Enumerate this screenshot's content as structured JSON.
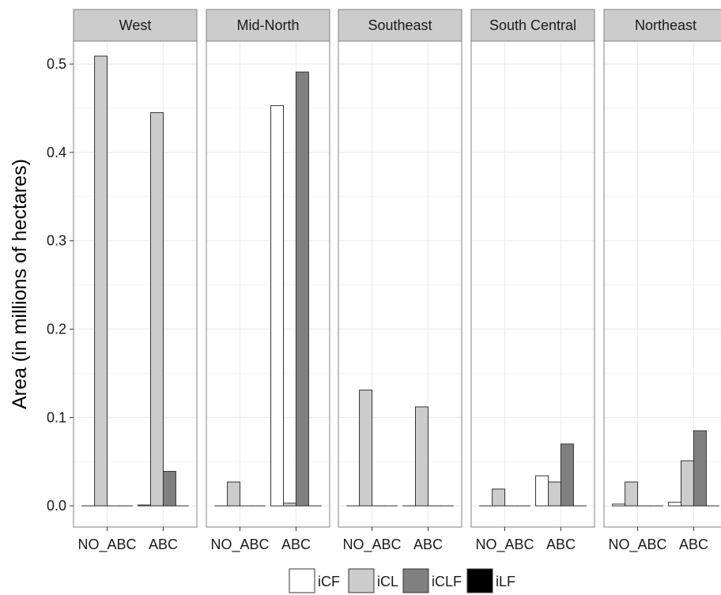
{
  "chart_data": {
    "type": "bar",
    "ylabel": "Area (in millions of hectares)",
    "xlabel": "",
    "ylim": [
      -0.024,
      0.526
    ],
    "yticks": [
      "0.0",
      "0.1",
      "0.2",
      "0.3",
      "0.4",
      "0.5"
    ],
    "ytick_values": [
      0.0,
      0.1,
      0.2,
      0.3,
      0.4,
      0.5
    ],
    "grid": true,
    "legend_position": "bottom",
    "categories": [
      "NO_ABC",
      "ABC"
    ],
    "series": [
      {
        "name": "iCF",
        "color": "#ffffff"
      },
      {
        "name": "iCL",
        "color": "#cccccc"
      },
      {
        "name": "iCLF",
        "color": "#808080"
      },
      {
        "name": "iLF",
        "color": "#000000"
      }
    ],
    "panels": [
      {
        "name": "West",
        "values": {
          "NO_ABC": [
            0.0,
            0.509,
            0.0,
            0.0
          ],
          "ABC": [
            0.001,
            0.445,
            0.039,
            0.0
          ]
        }
      },
      {
        "name": "Mid-North",
        "values": {
          "NO_ABC": [
            0.0,
            0.027,
            0.0,
            0.0
          ],
          "ABC": [
            0.453,
            0.003,
            0.491,
            0.0
          ]
        }
      },
      {
        "name": "Southeast",
        "values": {
          "NO_ABC": [
            0.0,
            0.131,
            0.0,
            0.0
          ],
          "ABC": [
            0.0,
            0.112,
            0.0,
            0.0
          ]
        }
      },
      {
        "name": "South Central",
        "values": {
          "NO_ABC": [
            0.0,
            0.019,
            0.0,
            0.0
          ],
          "ABC": [
            0.034,
            0.027,
            0.07,
            0.0
          ]
        }
      },
      {
        "name": "Northeast",
        "values": {
          "NO_ABC": [
            0.002,
            0.027,
            0.0,
            0.0
          ],
          "ABC": [
            0.004,
            0.051,
            0.085,
            0.0
          ]
        }
      }
    ]
  }
}
